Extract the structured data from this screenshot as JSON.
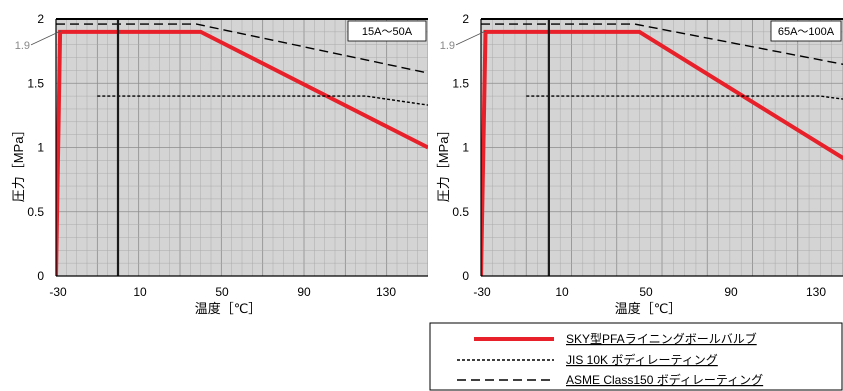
{
  "legend": {
    "items": [
      {
        "label": "SKY型PFAライニングボールバルブ",
        "style": "solid-thick",
        "color": "#e8202a"
      },
      {
        "label": "JIS 10K ボディレーティング",
        "style": "dotted",
        "color": "#000000"
      },
      {
        "label": "ASME Class150 ボディレーティング",
        "style": "dashed",
        "color": "#000000"
      }
    ]
  },
  "chart_data": [
    {
      "type": "line",
      "size_label": "15A〜50A",
      "xlabel": "温度［℃］",
      "ylabel": "圧力［MPa］",
      "xlim": [
        -30,
        150
      ],
      "ylim": [
        0,
        2
      ],
      "xticks": [
        -30,
        10,
        50,
        90,
        130
      ],
      "yticks": [
        0,
        0.5,
        1,
        1.5,
        2
      ],
      "y_annotation": "1.9",
      "y_annotation_value": 1.9,
      "reference_vline": 0,
      "grid": true,
      "series": [
        {
          "name": "SKY型PFAライニングボールバルブ",
          "x": [
            -30,
            -28,
            40,
            150
          ],
          "y": [
            0,
            1.9,
            1.9,
            1.0
          ]
        },
        {
          "name": "JIS 10K ボディレーティング",
          "x": [
            -10,
            120,
            150
          ],
          "y": [
            1.4,
            1.4,
            1.33
          ]
        },
        {
          "name": "ASME Class150 ボディレーティング",
          "x": [
            -30,
            38,
            150
          ],
          "y": [
            1.96,
            1.96,
            1.58
          ]
        }
      ]
    },
    {
      "type": "line",
      "size_label": "65A〜100A",
      "xlabel": "温度［℃］",
      "ylabel": "圧力［MPa］",
      "xlim": [
        -30,
        130
      ],
      "ylim": [
        0,
        2
      ],
      "xticks": [
        -30,
        10,
        50,
        90,
        130
      ],
      "yticks": [
        0,
        0.5,
        1,
        1.5,
        2
      ],
      "y_annotation": "1.9",
      "y_annotation_value": 1.9,
      "reference_vline": 0,
      "grid": true,
      "series": [
        {
          "name": "SKY型PFAライニングボールバルブ",
          "x": [
            -30,
            -28,
            40,
            150
          ],
          "y": [
            0,
            1.9,
            1.9,
            0.7
          ]
        },
        {
          "name": "JIS 10K ボディレーティング",
          "x": [
            -10,
            120,
            150
          ],
          "y": [
            1.4,
            1.4,
            1.33
          ]
        },
        {
          "name": "ASME Class150 ボディレーティング",
          "x": [
            -30,
            38,
            150
          ],
          "y": [
            1.96,
            1.96,
            1.58
          ]
        }
      ]
    }
  ]
}
